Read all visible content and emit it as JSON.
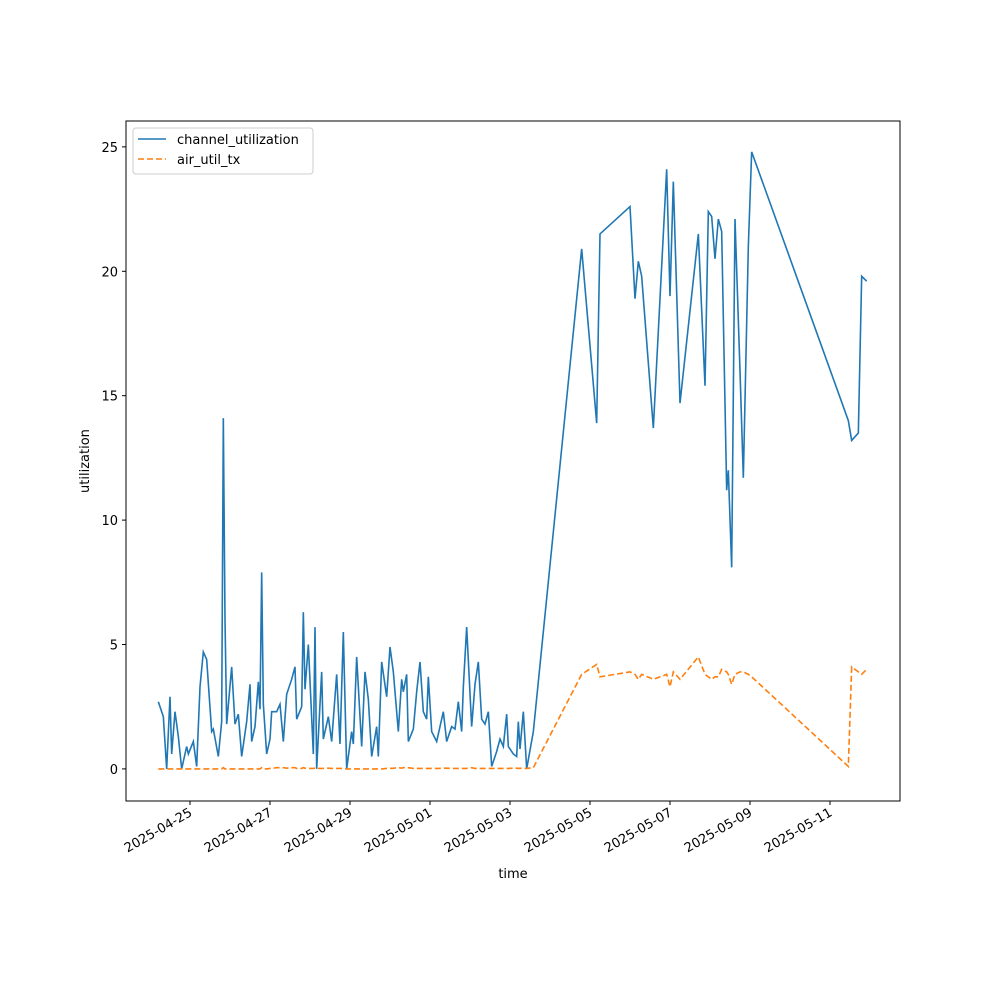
{
  "chart_data": {
    "type": "line",
    "xlabel": "time",
    "ylabel": "utilization",
    "legend": "upper left",
    "x": [
      "2025-04-24T05:00",
      "2025-04-24T08:00",
      "2025-04-24T10:00",
      "2025-04-24T12:00",
      "2025-04-24T13:00",
      "2025-04-24T15:00",
      "2025-04-24T17:00",
      "2025-04-24T19:00",
      "2025-04-24T22:00",
      "2025-04-24T23:00",
      "2025-04-25T02:00",
      "2025-04-25T04:00",
      "2025-04-25T06:00",
      "2025-04-25T08:00",
      "2025-04-25T10:00",
      "2025-04-25T13:00",
      "2025-04-25T14:00",
      "2025-04-25T17:00",
      "2025-04-25T19:00",
      "2025-04-25T20:00",
      "2025-04-25T21:00",
      "2025-04-25T22:00",
      "2025-04-26T01:00",
      "2025-04-26T03:00",
      "2025-04-26T05:00",
      "2025-04-26T07:00",
      "2025-04-26T10:00",
      "2025-04-26T12:00",
      "2025-04-26T13:00",
      "2025-04-26T15:00",
      "2025-04-26T17:00",
      "2025-04-26T18:00",
      "2025-04-26T19:00",
      "2025-04-26T20:00",
      "2025-04-26T22:00",
      "2025-04-27T00:00",
      "2025-04-27T01:00",
      "2025-04-27T04:00",
      "2025-04-27T06:00",
      "2025-04-27T08:00",
      "2025-04-27T10:00",
      "2025-04-27T13:00",
      "2025-04-27T15:00",
      "2025-04-27T16:00",
      "2025-04-27T19:00",
      "2025-04-27T20:00",
      "2025-04-27T21:00",
      "2025-04-27T23:00",
      "2025-04-28T02:00",
      "2025-04-28T03:00",
      "2025-04-28T04:00",
      "2025-04-28T07:00",
      "2025-04-28T08:00",
      "2025-04-28T11:00",
      "2025-04-28T13:00",
      "2025-04-28T16:00",
      "2025-04-28T18:00",
      "2025-04-28T20:00",
      "2025-04-28T22:00",
      "2025-04-29T01:00",
      "2025-04-29T02:00",
      "2025-04-29T04:00",
      "2025-04-29T07:00",
      "2025-04-29T09:00",
      "2025-04-29T11:00",
      "2025-04-29T13:00",
      "2025-04-29T16:00",
      "2025-04-29T17:00",
      "2025-04-29T19:00",
      "2025-04-29T22:00",
      "2025-04-30T00:00",
      "2025-04-30T02:00",
      "2025-04-30T05:00",
      "2025-04-30T07:00",
      "2025-04-30T08:00",
      "2025-04-30T10:00",
      "2025-04-30T11:00",
      "2025-04-30T14:00",
      "2025-04-30T16:00",
      "2025-04-30T18:00",
      "2025-04-30T20:00",
      "2025-04-30T22:00",
      "2025-04-30T23:00",
      "2025-05-01T01:00",
      "2025-05-01T04:00",
      "2025-05-01T05:00",
      "2025-05-01T08:00",
      "2025-05-01T10:00",
      "2025-05-01T13:00",
      "2025-05-01T15:00",
      "2025-05-01T17:00",
      "2025-05-01T19:00",
      "2025-05-01T20:00",
      "2025-05-01T22:00",
      "2025-05-02T01:00",
      "2025-05-02T03:00",
      "2025-05-02T05:00",
      "2025-05-02T07:00",
      "2025-05-02T09:00",
      "2025-05-02T11:00",
      "2025-05-02T13:00",
      "2025-05-02T16:00",
      "2025-05-02T18:00",
      "2025-05-02T20:00",
      "2025-05-02T22:00",
      "2025-05-02T23:00",
      "2025-05-03T02:00",
      "2025-05-03T04:00",
      "2025-05-03T05:00",
      "2025-05-03T06:00",
      "2025-05-03T08:00",
      "2025-05-03T10:00",
      "2025-05-03T14:00",
      "2025-05-04T19:00",
      "2025-05-05T04:00",
      "2025-05-05T06:00",
      "2025-05-06T00:00",
      "2025-05-06T03:00",
      "2025-05-06T05:00",
      "2025-05-06T07:00",
      "2025-05-06T14:00",
      "2025-05-06T22:00",
      "2025-05-07T00:00",
      "2025-05-07T02:00",
      "2025-05-07T06:00",
      "2025-05-07T17:00",
      "2025-05-07T21:00",
      "2025-05-07T23:00",
      "2025-05-08T01:00",
      "2025-05-08T03:00",
      "2025-05-08T05:00",
      "2025-05-08T07:00",
      "2025-05-08T10:00",
      "2025-05-08T11:00",
      "2025-05-08T13:00",
      "2025-05-08T15:00",
      "2025-05-08T18:00",
      "2025-05-08T20:00",
      "2025-05-08T23:00",
      "2025-05-09T01:00",
      "2025-05-11T11:00",
      "2025-05-11T13:00",
      "2025-05-11T17:00",
      "2025-05-11T19:00",
      "2025-05-11T22:00"
    ],
    "series": [
      {
        "name": "channel_utilization",
        "color": "#1f77b4",
        "linestyle": "solid",
        "values": [
          2.7,
          2.1,
          0,
          2.9,
          0.6,
          2.3,
          1.3,
          0,
          0.9,
          0.6,
          1.1,
          0.1,
          3.3,
          4.7,
          4.4,
          1.5,
          1.6,
          0.5,
          1.9,
          14.1,
          6,
          1.8,
          4.1,
          1.8,
          2.2,
          0.5,
          1.9,
          3.4,
          1.1,
          1.7,
          3.5,
          2.4,
          7.9,
          2.6,
          0.6,
          1.2,
          2.3,
          2.3,
          2.6,
          1.1,
          3.0,
          3.6,
          4.1,
          2.0,
          2.5,
          6.3,
          3.2,
          5.0,
          0.6,
          5.7,
          0,
          3.9,
          1.2,
          2.1,
          1.1,
          3.8,
          1.0,
          5.5,
          0,
          1.5,
          1.0,
          4.5,
          0.9,
          3.9,
          2.8,
          0.5,
          1.7,
          0.5,
          4.3,
          2.9,
          4.9,
          3.9,
          1.5,
          3.6,
          3.1,
          3.8,
          1.1,
          1.6,
          3.1,
          4.3,
          2.3,
          2.0,
          3.7,
          1.5,
          1.1,
          1.4,
          2.3,
          1.1,
          1.7,
          1.6,
          2.7,
          1.5,
          3.3,
          5.7,
          1.7,
          3.4,
          4.3,
          2.0,
          1.8,
          2.3,
          0.1,
          0.7,
          1.2,
          0.9,
          2.2,
          0.9,
          0.6,
          0.5,
          1.9,
          0.8,
          2.3,
          0,
          1.5,
          20.9,
          13.9,
          21.5,
          22.6,
          18.9,
          20.4,
          19.8,
          13.7,
          24.1,
          19.0,
          23.6,
          14.7,
          21.5,
          15.4,
          22.4,
          22.2,
          20.5,
          22.1,
          21.6,
          11.2,
          12.0,
          8.1,
          22.1,
          16.0,
          11.7,
          21.0,
          24.8,
          14.0,
          13.2,
          13.5,
          19.8,
          19.6
        ]
      },
      {
        "name": "air_util_tx",
        "color": "#ff7f0e",
        "linestyle": "dashed",
        "values": [
          0,
          0,
          0,
          0,
          0,
          0,
          0,
          0,
          0,
          0,
          0,
          0,
          0,
          0,
          0,
          0,
          0,
          0,
          0,
          0.05,
          0,
          0,
          0,
          0,
          0,
          0,
          0,
          0,
          0,
          0,
          0,
          0,
          0.05,
          0,
          0,
          0.02,
          0.02,
          0.05,
          0.05,
          0.05,
          0.03,
          0.05,
          0.05,
          0.02,
          0.02,
          0.05,
          0.03,
          0.02,
          0.02,
          0.03,
          0.02,
          0.02,
          0.02,
          0.03,
          0.02,
          0.02,
          0.02,
          0.02,
          0,
          0,
          0,
          0,
          0,
          0,
          0,
          0,
          0,
          0,
          0,
          0.02,
          0.02,
          0.03,
          0.05,
          0.03,
          0.05,
          0.05,
          0.05,
          0.02,
          0.02,
          0.02,
          0.02,
          0.02,
          0.02,
          0.02,
          0.02,
          0.02,
          0.03,
          0.03,
          0.02,
          0.02,
          0.02,
          0.02,
          0.02,
          0.02,
          0.05,
          0.02,
          0.02,
          0.02,
          0.02,
          0.02,
          0.02,
          0.02,
          0.02,
          0.02,
          0.02,
          0.02,
          0.03,
          0.03,
          0.02,
          0.03,
          0.02,
          0.02,
          0.05,
          3.8,
          4.2,
          3.7,
          3.9,
          3.8,
          3.6,
          3.8,
          3.6,
          3.8,
          3.3,
          3.9,
          3.6,
          4.5,
          3.8,
          3.7,
          3.6,
          3.7,
          3.7,
          4.0,
          3.9,
          3.8,
          3.4,
          3.8,
          3.9,
          3.9,
          3.8,
          3.7,
          0.1,
          4.1,
          3.9,
          3.8,
          4.0
        ]
      }
    ],
    "xlim": [
      "2025-04-23T09:36",
      "2025-05-12T18:00"
    ],
    "xticks": [
      "2025-04-25",
      "2025-04-27",
      "2025-04-29",
      "2025-05-01",
      "2025-05-03",
      "2025-05-05",
      "2025-05-07",
      "2025-05-09",
      "2025-05-11"
    ],
    "ylim": [
      -1.29,
      26.04
    ],
    "yticks": [
      0,
      5,
      10,
      15,
      20,
      25
    ]
  }
}
